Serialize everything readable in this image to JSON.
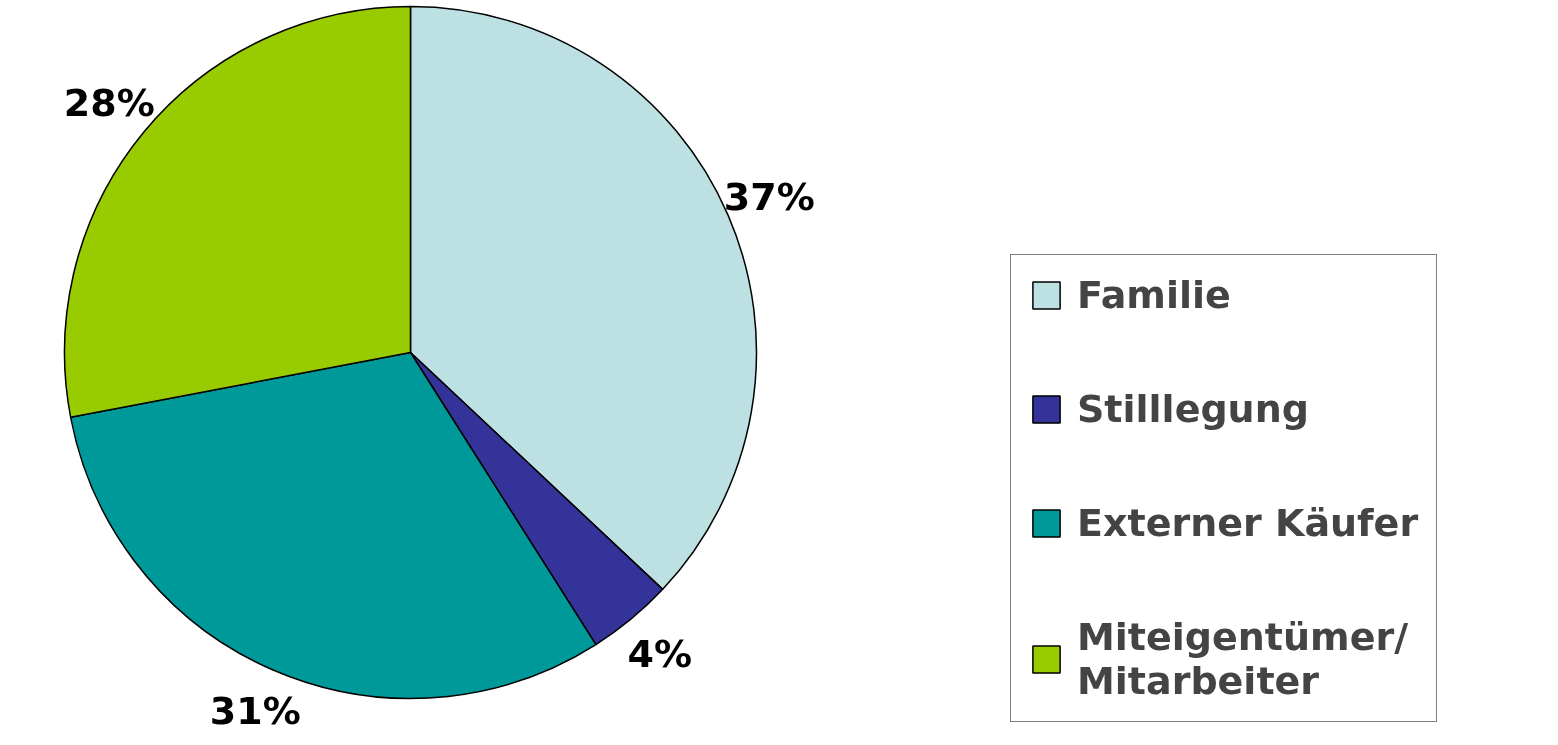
{
  "chart_data": {
    "type": "pie",
    "categories": [
      "Familie",
      "Stilllegung",
      "Externer Käufer",
      "Miteigentümer/Mitarbeiter"
    ],
    "values": [
      37,
      4,
      31,
      28
    ],
    "colors": [
      "#bde0e3",
      "#333399",
      "#009999",
      "#99cc00"
    ],
    "value_labels": [
      "37%",
      "4%",
      "31%",
      "28%"
    ],
    "legend": "right"
  }
}
